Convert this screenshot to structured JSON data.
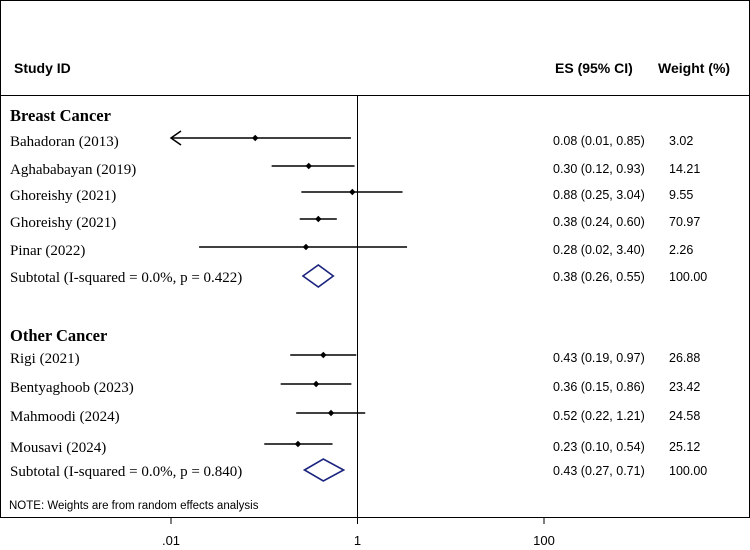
{
  "chart_data": {
    "type": "forest",
    "header": {
      "study_id": "Study ID",
      "es_ci": "ES (95% CI)",
      "weight": "Weight (%)"
    },
    "groups": [
      {
        "name": "Breast Cancer",
        "studies": [
          {
            "label": "Bahadoran (2013)",
            "es": 0.08,
            "lo": 0.01,
            "hi": 0.85,
            "es_text": "0.08 (0.01, 0.85)",
            "weight_text": "3.02",
            "arrow_left": true
          },
          {
            "label": "Aghababayan (2019)",
            "es": 0.3,
            "lo": 0.12,
            "hi": 0.93,
            "es_text": "0.30 (0.12, 0.93)",
            "weight_text": "14.21"
          },
          {
            "label": "Ghoreishy (2021)",
            "es": 0.88,
            "lo": 0.25,
            "hi": 3.04,
            "es_text": "0.88 (0.25, 3.04)",
            "weight_text": "9.55"
          },
          {
            "label": "Ghoreishy (2021)",
            "es": 0.38,
            "lo": 0.24,
            "hi": 0.6,
            "es_text": "0.38 (0.24, 0.60)",
            "weight_text": "70.97"
          },
          {
            "label": "Pinar (2022)",
            "es": 0.28,
            "lo": 0.02,
            "hi": 3.4,
            "es_text": "0.28 (0.02, 3.40)",
            "weight_text": "2.26"
          }
        ],
        "subtotal": {
          "label": "Subtotal (I-squared = 0.0%, p = 0.422)",
          "es": 0.38,
          "lo": 0.26,
          "hi": 0.55,
          "es_text": "0.38 (0.26, 0.55)",
          "weight_text": "100.00"
        }
      },
      {
        "name": "Other Cancer",
        "studies": [
          {
            "label": "Rigi (2021)",
            "es": 0.43,
            "lo": 0.19,
            "hi": 0.97,
            "es_text": "0.43 (0.19, 0.97)",
            "weight_text": "26.88"
          },
          {
            "label": "Bentyaghoob (2023)",
            "es": 0.36,
            "lo": 0.15,
            "hi": 0.86,
            "es_text": "0.36 (0.15, 0.86)",
            "weight_text": "23.42"
          },
          {
            "label": "Mahmoodi (2024)",
            "es": 0.52,
            "lo": 0.22,
            "hi": 1.21,
            "es_text": "0.52 (0.22, 1.21)",
            "weight_text": "24.58"
          },
          {
            "label": "Mousavi (2024)",
            "es": 0.23,
            "lo": 0.1,
            "hi": 0.54,
            "es_text": "0.23 (0.10, 0.54)",
            "weight_text": "25.12"
          }
        ],
        "subtotal": {
          "label": "Subtotal (I-squared = 0.0%, p = 0.840)",
          "es": 0.43,
          "lo": 0.27,
          "hi": 0.71,
          "es_text": "0.43 (0.27, 0.71)",
          "weight_text": "100.00"
        }
      }
    ],
    "note": "NOTE: Weights are from random effects analysis",
    "x_scale": "log",
    "x_range": [
      0.01,
      100
    ],
    "x_ticks": [
      {
        "value": 0.01,
        "label": ".01"
      },
      {
        "value": 1,
        "label": "1"
      },
      {
        "value": 100,
        "label": "100"
      }
    ],
    "reference_line": 1
  }
}
